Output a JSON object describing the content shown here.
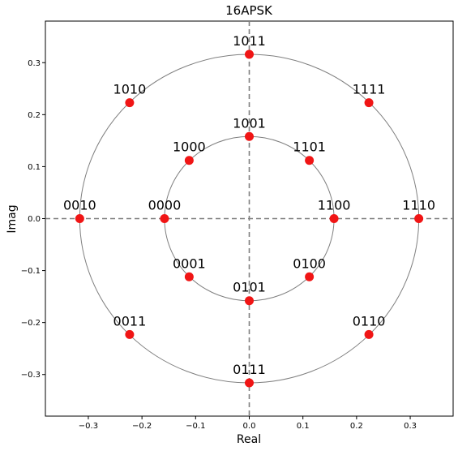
{
  "chart_data": {
    "type": "scatter",
    "title": "16APSK",
    "xlabel": "Real",
    "ylabel": "Imag",
    "xlim": [
      -0.38,
      0.38
    ],
    "ylim": [
      -0.38,
      0.38
    ],
    "x_ticks": [
      -0.3,
      -0.2,
      -0.1,
      0.0,
      0.1,
      0.2,
      0.3
    ],
    "x_tick_labels": [
      "−0.3",
      "−0.2",
      "−0.1",
      "0.0",
      "0.1",
      "0.2",
      "0.3"
    ],
    "y_ticks": [
      0.3,
      0.2,
      0.1,
      0.0,
      -0.1,
      -0.2,
      -0.3
    ],
    "y_tick_labels": [
      "0.3",
      "0.2",
      "0.1",
      "0.0",
      "−0.1",
      "−0.2",
      "−0.3"
    ],
    "circle_radii": [
      0.158,
      0.316
    ],
    "point_color": "#f01515",
    "circle_color": "#7f7f7f",
    "axis_line_color": "#7f7f7f",
    "points": [
      {
        "label": "0000",
        "x": -0.158,
        "y": 0.0
      },
      {
        "label": "0001",
        "x": -0.112,
        "y": -0.112
      },
      {
        "label": "0101",
        "x": 0.0,
        "y": -0.158
      },
      {
        "label": "0100",
        "x": 0.112,
        "y": -0.112
      },
      {
        "label": "1100",
        "x": 0.158,
        "y": 0.0
      },
      {
        "label": "1101",
        "x": 0.112,
        "y": 0.112
      },
      {
        "label": "1001",
        "x": 0.0,
        "y": 0.158
      },
      {
        "label": "1000",
        "x": -0.112,
        "y": 0.112
      },
      {
        "label": "0010",
        "x": -0.316,
        "y": 0.0
      },
      {
        "label": "0011",
        "x": -0.223,
        "y": -0.223
      },
      {
        "label": "0111",
        "x": 0.0,
        "y": -0.316
      },
      {
        "label": "0110",
        "x": 0.223,
        "y": -0.223
      },
      {
        "label": "1110",
        "x": 0.316,
        "y": 0.0
      },
      {
        "label": "1111",
        "x": 0.223,
        "y": 0.223
      },
      {
        "label": "1011",
        "x": 0.0,
        "y": 0.316
      },
      {
        "label": "1010",
        "x": -0.223,
        "y": 0.223
      }
    ]
  }
}
